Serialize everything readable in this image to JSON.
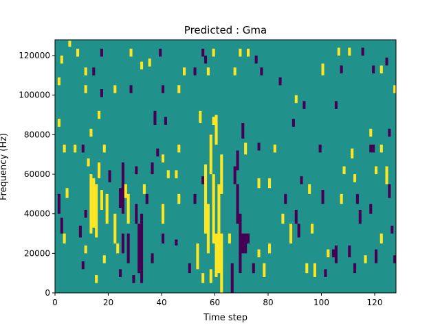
{
  "chart_data": {
    "type": "heatmap",
    "title": "Predicted : Gma",
    "xlabel": "Time step",
    "ylabel": "Frequency (Hz)",
    "xlim": [
      0,
      128
    ],
    "ylim": [
      0,
      128000
    ],
    "xticks": [
      "0",
      "20",
      "40",
      "60",
      "80",
      "100",
      "120"
    ],
    "xtick_values": [
      0,
      20,
      40,
      60,
      80,
      100,
      120
    ],
    "yticks": [
      "0",
      "20000",
      "40000",
      "60000",
      "80000",
      "100000",
      "120000"
    ],
    "ytick_values": [
      0,
      20000,
      40000,
      60000,
      80000,
      100000,
      120000
    ],
    "colormap": {
      "-1": "#440154",
      "0": "#21918c",
      "1": "#fde725"
    },
    "background_value": 0,
    "cells_format": [
      "time_step",
      "freq_start_hz",
      "freq_end_hz",
      "value"
    ],
    "cells": [
      [
        5,
        124500,
        127500,
        1
      ],
      [
        8,
        119500,
        123500,
        1
      ],
      [
        2,
        116000,
        120000,
        1
      ],
      [
        17,
        119500,
        123500,
        -1
      ],
      [
        28,
        119500,
        123500,
        1
      ],
      [
        35,
        114500,
        118500,
        1
      ],
      [
        39,
        119500,
        123500,
        -1
      ],
      [
        55,
        119500,
        123500,
        -1
      ],
      [
        56,
        116000,
        120000,
        -1
      ],
      [
        59,
        119500,
        123500,
        1
      ],
      [
        69,
        119500,
        123500,
        1
      ],
      [
        72,
        119500,
        123500,
        1
      ],
      [
        75,
        116000,
        120000,
        -1
      ],
      [
        11,
        110000,
        114000,
        1
      ],
      [
        14,
        110000,
        114000,
        -1
      ],
      [
        32,
        113000,
        117000,
        1
      ],
      [
        48,
        110000,
        114000,
        1
      ],
      [
        52,
        110000,
        114000,
        -1
      ],
      [
        57,
        110000,
        114000,
        1
      ],
      [
        67,
        110000,
        114000,
        1
      ],
      [
        77,
        110000,
        114000,
        -1
      ],
      [
        1,
        105000,
        109000,
        1
      ],
      [
        11,
        101000,
        105000,
        1
      ],
      [
        22,
        101000,
        105000,
        1
      ],
      [
        28,
        101000,
        105000,
        -1
      ],
      [
        40,
        101000,
        105000,
        -1
      ],
      [
        46,
        101000,
        105000,
        1
      ],
      [
        17,
        99000,
        103000,
        -1
      ],
      [
        84,
        105000,
        109000,
        -1
      ],
      [
        90,
        96000,
        100000,
        1
      ],
      [
        93,
        93000,
        97000,
        -1
      ],
      [
        105,
        93000,
        97000,
        -1
      ],
      [
        127,
        101000,
        105000,
        1
      ],
      [
        100,
        110000,
        116000,
        1
      ],
      [
        107,
        111000,
        115000,
        -1
      ],
      [
        119,
        111000,
        115000,
        -1
      ],
      [
        122,
        111000,
        115000,
        1
      ],
      [
        106,
        120000,
        124000,
        1
      ],
      [
        110,
        120000,
        124000,
        1
      ],
      [
        115,
        120000,
        124000,
        -1
      ],
      [
        124,
        115000,
        119000,
        -1
      ],
      [
        16,
        88000,
        92000,
        1
      ],
      [
        37,
        85000,
        92000,
        -1
      ],
      [
        41,
        85000,
        89000,
        -1
      ],
      [
        54,
        86000,
        92000,
        1
      ],
      [
        59,
        85000,
        89000,
        1
      ],
      [
        1,
        84000,
        88000,
        1
      ],
      [
        13,
        79000,
        83000,
        1
      ],
      [
        70,
        78000,
        86000,
        -1
      ],
      [
        89,
        84000,
        88000,
        -1
      ],
      [
        118,
        79000,
        83000,
        1
      ],
      [
        125,
        79000,
        83000,
        -1
      ],
      [
        3,
        71000,
        75000,
        1
      ],
      [
        7,
        71000,
        75000,
        1
      ],
      [
        10,
        71000,
        75000,
        -1
      ],
      [
        18,
        71000,
        75000,
        1
      ],
      [
        38,
        69000,
        73000,
        -1
      ],
      [
        40,
        66000,
        70000,
        1
      ],
      [
        46,
        71000,
        75000,
        1
      ],
      [
        58,
        60000,
        80000,
        1
      ],
      [
        60,
        75000,
        90000,
        1
      ],
      [
        62,
        50000,
        70000,
        1
      ],
      [
        68,
        62000,
        72000,
        -1
      ],
      [
        71,
        70000,
        76000,
        1
      ],
      [
        76,
        72000,
        76000,
        -1
      ],
      [
        82,
        71000,
        75000,
        1
      ],
      [
        99,
        71000,
        75000,
        -1
      ],
      [
        111,
        68000,
        73000,
        1
      ],
      [
        118,
        71000,
        75000,
        -1
      ],
      [
        119,
        71000,
        75000,
        -1
      ],
      [
        122,
        71000,
        75000,
        1
      ],
      [
        12,
        64000,
        68000,
        1
      ],
      [
        16,
        58000,
        66000,
        1
      ],
      [
        20,
        56000,
        62000,
        -1
      ],
      [
        25,
        50000,
        66000,
        -1
      ],
      [
        30,
        60000,
        64000,
        -1
      ],
      [
        36,
        60000,
        66000,
        -1
      ],
      [
        42,
        58000,
        62000,
        1
      ],
      [
        45,
        58000,
        62000,
        1
      ],
      [
        55,
        55000,
        59000,
        -1
      ],
      [
        67,
        55000,
        64000,
        -1
      ],
      [
        76,
        53000,
        58000,
        1
      ],
      [
        80,
        53000,
        58000,
        1
      ],
      [
        92,
        55000,
        59000,
        -1
      ],
      [
        108,
        60000,
        64000,
        1
      ],
      [
        112,
        56000,
        60000,
        1
      ],
      [
        120,
        60000,
        64000,
        1
      ],
      [
        124,
        55000,
        64000,
        1
      ],
      [
        125,
        48000,
        55000,
        -1
      ],
      [
        4,
        48000,
        53000,
        1
      ],
      [
        13,
        30000,
        60000,
        1
      ],
      [
        14,
        33000,
        58000,
        1
      ],
      [
        15,
        28000,
        55000,
        1
      ],
      [
        17,
        42000,
        52000,
        1
      ],
      [
        19,
        35000,
        50000,
        1
      ],
      [
        24,
        43000,
        53000,
        -1
      ],
      [
        25,
        40000,
        55000,
        -1
      ],
      [
        26,
        48000,
        55000,
        1
      ],
      [
        27,
        35000,
        50000,
        1
      ],
      [
        30,
        35000,
        45000,
        -1
      ],
      [
        33,
        50000,
        55000,
        1
      ],
      [
        34,
        45000,
        50000,
        -1
      ],
      [
        40,
        35000,
        45000,
        1
      ],
      [
        46,
        45000,
        50000,
        1
      ],
      [
        52,
        45000,
        50000,
        -1
      ],
      [
        56,
        30000,
        65000,
        1
      ],
      [
        57,
        20000,
        45000,
        1
      ],
      [
        59,
        25000,
        60000,
        1
      ],
      [
        61,
        10000,
        55000,
        1
      ],
      [
        68,
        35000,
        55000,
        -1
      ],
      [
        69,
        10000,
        40000,
        -1
      ],
      [
        70,
        20000,
        30000,
        -1
      ],
      [
        71,
        20000,
        30000,
        -1
      ],
      [
        72,
        25000,
        30000,
        -1
      ],
      [
        1,
        40000,
        50000,
        -1
      ],
      [
        2,
        30000,
        38000,
        -1
      ],
      [
        3,
        25000,
        30000,
        1
      ],
      [
        11,
        38000,
        42000,
        -1
      ],
      [
        22,
        25000,
        40000,
        1
      ],
      [
        25,
        20000,
        30000,
        -1
      ],
      [
        27,
        15000,
        30000,
        -1
      ],
      [
        31,
        10000,
        35000,
        -1
      ],
      [
        32,
        5000,
        40000,
        -1
      ],
      [
        36,
        15000,
        20000,
        -1
      ],
      [
        40,
        25000,
        30000,
        -1
      ],
      [
        45,
        24000,
        27000,
        -1
      ],
      [
        50,
        10000,
        15000,
        -1
      ],
      [
        53,
        12000,
        25000,
        1
      ],
      [
        55,
        5000,
        10000,
        1
      ],
      [
        62,
        0,
        30000,
        1
      ],
      [
        60,
        8000,
        30000,
        1
      ],
      [
        58,
        5000,
        12000,
        1
      ],
      [
        65,
        25000,
        30000,
        1
      ],
      [
        66,
        0,
        15000,
        -1
      ],
      [
        74,
        10000,
        15000,
        -1
      ],
      [
        76,
        18000,
        22000,
        1
      ],
      [
        78,
        8000,
        15000,
        1
      ],
      [
        80,
        20000,
        25000,
        1
      ],
      [
        85,
        35000,
        40000,
        1
      ],
      [
        88,
        25000,
        35000,
        1
      ],
      [
        90,
        35000,
        42000,
        -1
      ],
      [
        91,
        28000,
        35000,
        -1
      ],
      [
        94,
        10000,
        15000,
        1
      ],
      [
        96,
        30000,
        35000,
        1
      ],
      [
        97,
        8000,
        15000,
        1
      ],
      [
        101,
        8000,
        12000,
        -1
      ],
      [
        102,
        18000,
        22000,
        1
      ],
      [
        104,
        18000,
        22000,
        -1
      ],
      [
        105,
        15000,
        24000,
        -1
      ],
      [
        110,
        18000,
        24000,
        -1
      ],
      [
        112,
        10000,
        15000,
        -1
      ],
      [
        116,
        15000,
        19000,
        1
      ],
      [
        120,
        15000,
        22000,
        -1
      ],
      [
        122,
        25000,
        30000,
        1
      ],
      [
        126,
        30000,
        34000,
        -1
      ],
      [
        127,
        15000,
        19000,
        -1
      ],
      [
        107,
        45000,
        50000,
        1
      ],
      [
        114,
        35000,
        42000,
        -1
      ],
      [
        118,
        40000,
        45000,
        -1
      ],
      [
        113,
        45000,
        50000,
        -1
      ],
      [
        100,
        45000,
        52000,
        -1
      ],
      [
        95,
        50000,
        55000,
        1
      ],
      [
        86,
        45000,
        50000,
        -1
      ],
      [
        9,
        28000,
        34000,
        -1
      ],
      [
        11,
        20000,
        24000,
        1
      ],
      [
        10,
        12000,
        16000,
        -1
      ],
      [
        15,
        5000,
        9000,
        1
      ],
      [
        18,
        15000,
        19000,
        1
      ],
      [
        23,
        20000,
        25000,
        1
      ],
      [
        24,
        8000,
        12000,
        -1
      ],
      [
        29,
        5000,
        9000,
        -1
      ]
    ]
  }
}
